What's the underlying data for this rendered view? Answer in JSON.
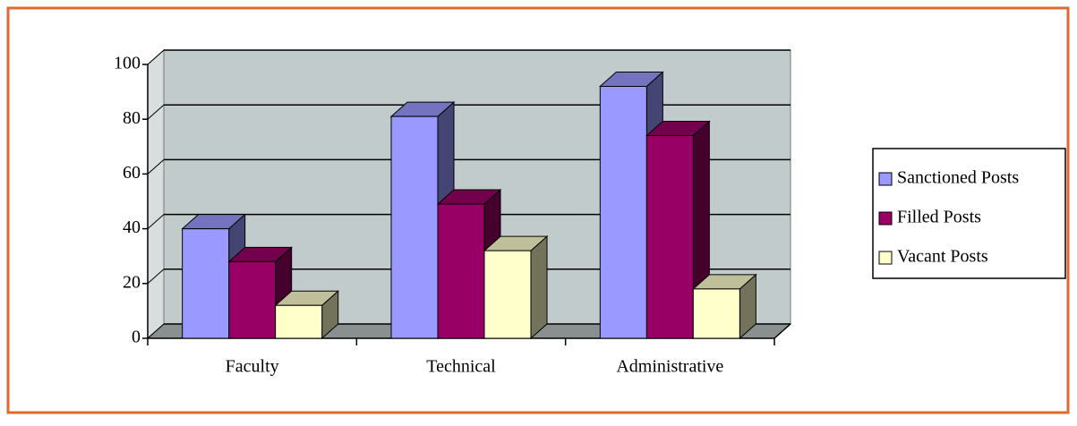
{
  "chart_data": {
    "type": "bar3d",
    "categories": [
      "Faculty",
      "Technical",
      "Administrative"
    ],
    "series": [
      {
        "name": "Sanctioned Posts",
        "color": "#9999ff",
        "values": [
          40,
          81,
          92
        ]
      },
      {
        "name": "Filled Posts",
        "color": "#990066",
        "values": [
          28,
          49,
          74
        ]
      },
      {
        "name": "Vacant Posts",
        "color": "#ffffcc",
        "values": [
          12,
          32,
          18
        ]
      }
    ],
    "ylim": [
      0,
      100
    ],
    "yticks": [
      0,
      20,
      40,
      60,
      80,
      100
    ],
    "grid": true,
    "legend": "right"
  }
}
